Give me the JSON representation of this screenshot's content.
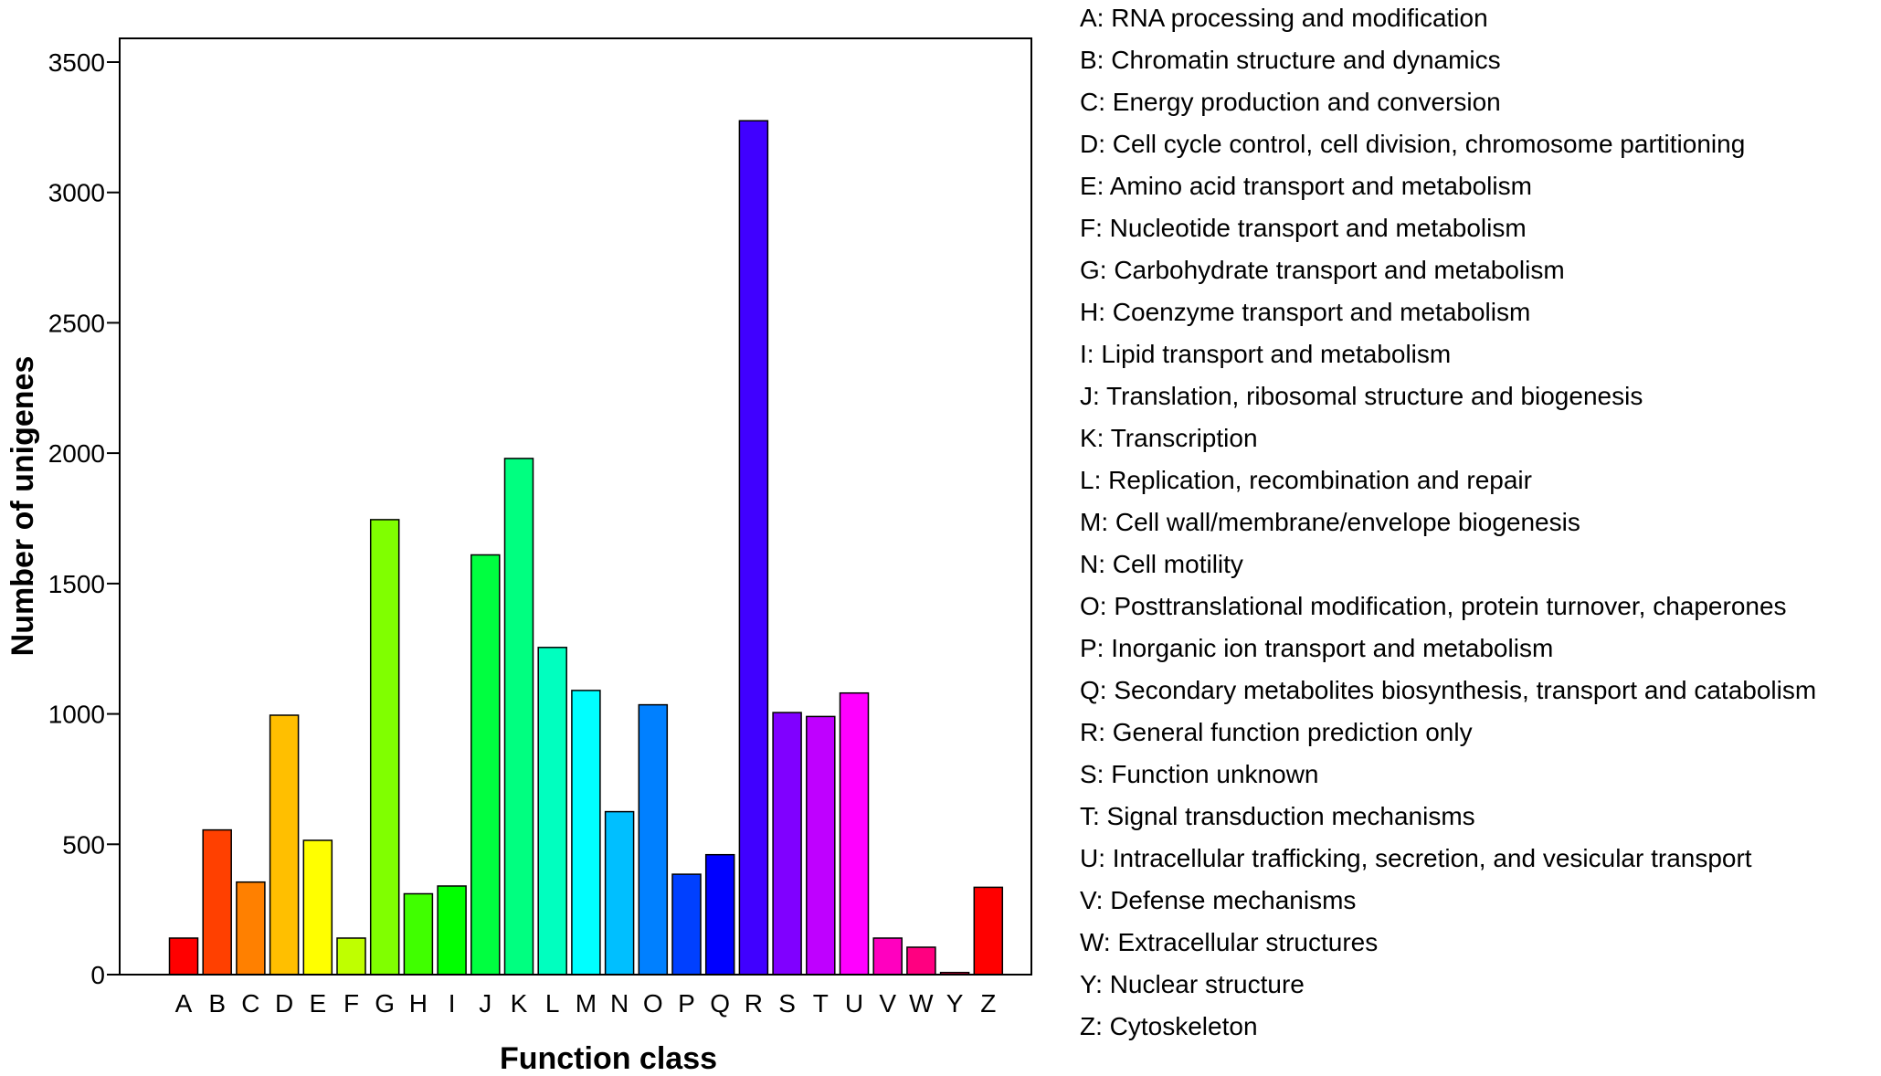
{
  "chart_data": {
    "type": "bar",
    "title": "",
    "xlabel": "Function class",
    "ylabel": "Number of unigenes",
    "ylim": [
      0,
      3600
    ],
    "yticks": [
      0,
      500,
      1000,
      1500,
      2000,
      2500,
      3000,
      3500
    ],
    "grid": false,
    "legend_placement": "right",
    "categories": [
      "A",
      "B",
      "C",
      "D",
      "E",
      "F",
      "G",
      "H",
      "I",
      "J",
      "K",
      "L",
      "M",
      "N",
      "O",
      "P",
      "Q",
      "R",
      "S",
      "T",
      "U",
      "V",
      "W",
      "Y",
      "Z"
    ],
    "values": [
      140,
      555,
      355,
      995,
      515,
      140,
      1745,
      310,
      340,
      1610,
      1980,
      1255,
      1090,
      625,
      1035,
      385,
      460,
      3275,
      1005,
      990,
      1080,
      140,
      105,
      8,
      335
    ],
    "colors": [
      "#ff0000",
      "#ff4000",
      "#ff8000",
      "#ffbf00",
      "#ffff00",
      "#bfff00",
      "#80ff00",
      "#40ff00",
      "#00ff00",
      "#00ff40",
      "#00ff80",
      "#00ffbf",
      "#00ffff",
      "#00bfff",
      "#0080ff",
      "#0040ff",
      "#0000ff",
      "#4000ff",
      "#8000ff",
      "#bf00ff",
      "#ff00ff",
      "#ff00bf",
      "#ff0080",
      "#ff0040",
      "#ff0000"
    ],
    "legend": [
      "A: RNA processing and modification",
      "B: Chromatin structure and dynamics",
      "C: Energy production and conversion",
      "D: Cell cycle control, cell division, chromosome partitioning",
      "E: Amino acid transport and metabolism",
      "F: Nucleotide transport and metabolism",
      "G: Carbohydrate transport and metabolism",
      "H: Coenzyme transport and metabolism",
      "I: Lipid transport and metabolism",
      "J: Translation, ribosomal structure and biogenesis",
      "K: Transcription",
      "L: Replication, recombination and repair",
      "M: Cell wall/membrane/envelope biogenesis",
      "N: Cell motility",
      "O: Posttranslational modification, protein turnover, chaperones",
      "P: Inorganic ion transport and metabolism",
      "Q: Secondary metabolites biosynthesis, transport and catabolism",
      "R: General function prediction only",
      "S: Function unknown",
      "T: Signal transduction mechanisms",
      "U: Intracellular trafficking, secretion, and vesicular transport",
      "V: Defense mechanisms",
      "W: Extracellular structures",
      "Y: Nuclear structure",
      "Z: Cytoskeleton"
    ]
  }
}
